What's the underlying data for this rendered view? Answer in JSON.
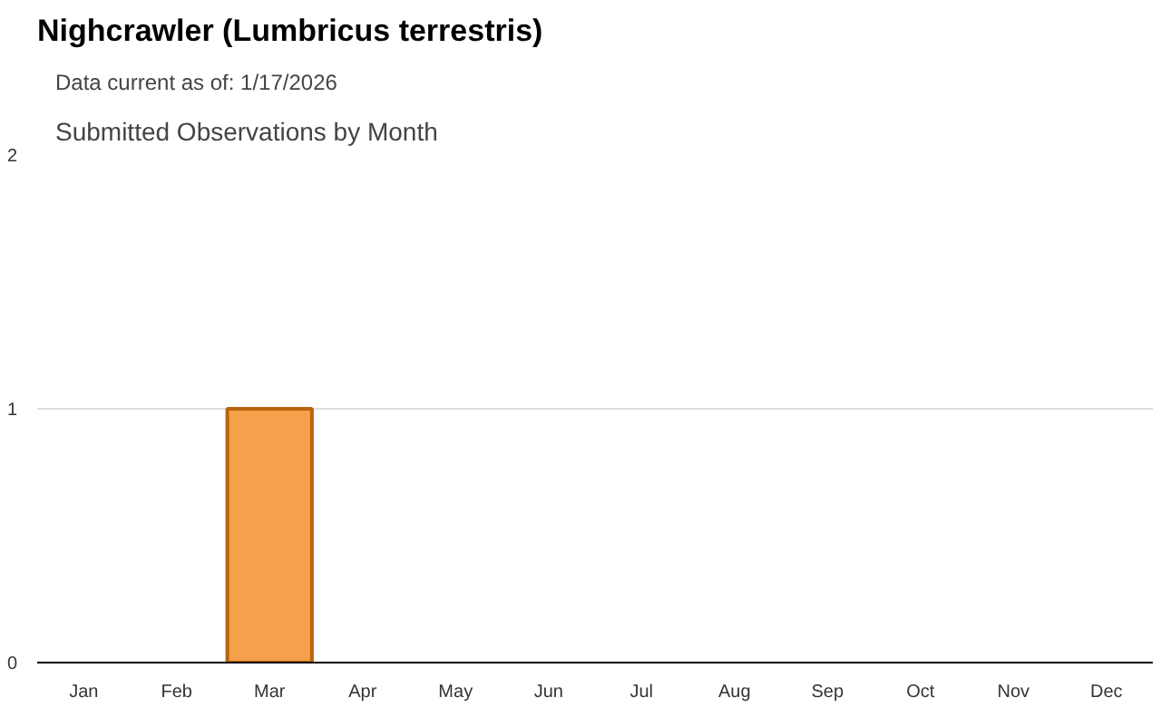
{
  "chart_data": {
    "type": "bar",
    "title": "Nighcrawler   (Lumbricus terrestris)",
    "subtitle": "Data current as of: 1/17/2026",
    "annotations": [
      "Submitted Observations by Month"
    ],
    "categories": [
      "Jan",
      "Feb",
      "Mar",
      "Apr",
      "May",
      "Jun",
      "Jul",
      "Aug",
      "Sep",
      "Oct",
      "Nov",
      "Dec"
    ],
    "values": [
      0,
      0,
      1,
      0,
      0,
      0,
      0,
      0,
      0,
      0,
      0,
      0
    ],
    "color": "#f5a04a",
    "ylim": [
      0,
      2
    ],
    "yticks": [
      0,
      1,
      2
    ],
    "grid": "y"
  }
}
